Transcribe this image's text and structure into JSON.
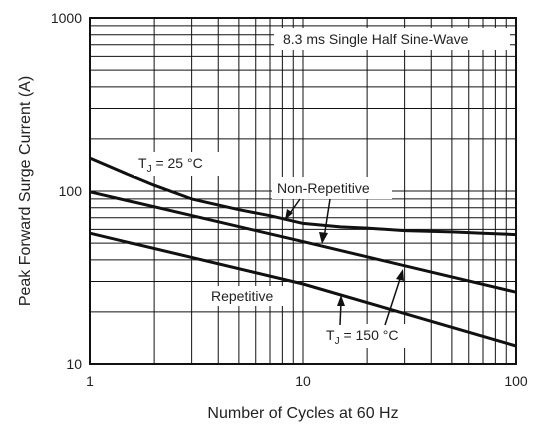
{
  "chart_data": {
    "type": "line",
    "x_scale": "log",
    "y_scale": "log",
    "xlim": [
      1,
      100
    ],
    "ylim": [
      10,
      1000
    ],
    "x_ticks": [
      "1",
      "10",
      "100"
    ],
    "y_ticks": [
      "10",
      "100",
      "1000"
    ],
    "xlabel": "Number of Cycles at 60 Hz",
    "ylabel": "Peak Forward Surge Current (A)",
    "grid": true,
    "series": [
      {
        "name": "T_J = 25 °C",
        "x": [
          1,
          1.5,
          2,
          3,
          5,
          7,
          10,
          15,
          20,
          30,
          50,
          70,
          100
        ],
        "y": [
          155,
          125,
          108,
          90,
          78,
          72,
          65,
          62,
          61,
          59,
          58,
          57,
          56
        ]
      },
      {
        "name": "Non-Repetitive",
        "x": [
          1,
          10,
          100
        ],
        "y": [
          99,
          51,
          26
        ]
      },
      {
        "name": "Repetitive",
        "x": [
          1,
          10,
          100
        ],
        "y": [
          57,
          29,
          12.7
        ]
      }
    ],
    "annotations": {
      "box": "8.3 ms Single Half Sine-Wave",
      "t25_prefix": "T",
      "t25_sub": "J",
      "t25_value": " = 25 °C",
      "t150_prefix": "T",
      "t150_sub": "J",
      "t150_value": " = 150 °C",
      "nonrep": "Non-Repetitive",
      "rep": "Repetitive"
    }
  }
}
